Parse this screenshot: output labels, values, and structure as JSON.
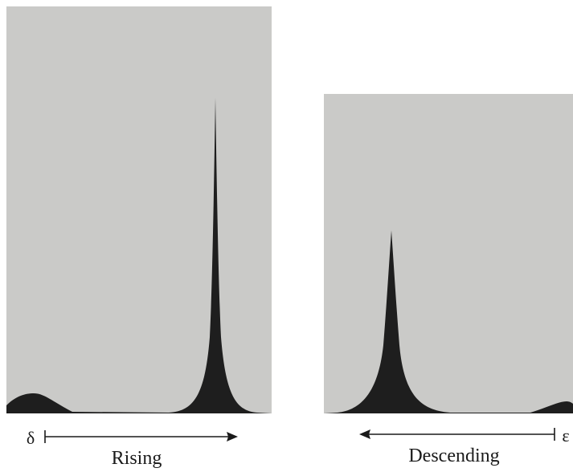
{
  "panels": [
    {
      "symbol": "δ",
      "label": "Rising"
    },
    {
      "symbol": "ε",
      "label": "Descending"
    }
  ]
}
